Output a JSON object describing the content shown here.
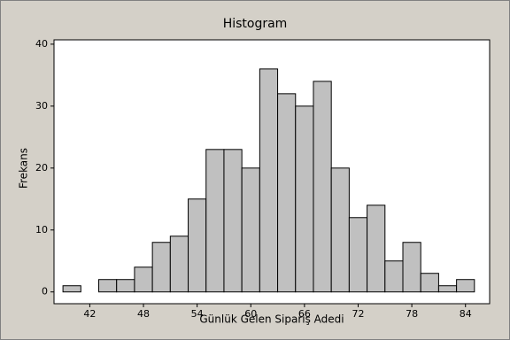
{
  "chart_data": {
    "type": "histogram",
    "title": "Histogram",
    "x_label": "Günlük Gelen Sipariş Adedi",
    "y_label": "Frekans",
    "bins": [
      39,
      41,
      43,
      45,
      47,
      49,
      51,
      53,
      55,
      57,
      59,
      61,
      63,
      65,
      67,
      69,
      71,
      73,
      75,
      77,
      79,
      81,
      83,
      85
    ],
    "values": [
      1,
      0,
      2,
      2,
      4,
      8,
      9,
      15,
      23,
      23,
      20,
      36,
      32,
      30,
      34,
      20,
      12,
      14,
      5,
      8,
      3,
      1,
      2
    ],
    "color": "#c0c0c0",
    "xlim": [
      38,
      86.7
    ],
    "xticks": [
      42,
      48,
      54,
      60,
      66,
      72,
      78,
      84
    ],
    "ylim": [
      -1.9,
      40.7
    ],
    "yticks": [
      0,
      10,
      20,
      30,
      40
    ]
  }
}
